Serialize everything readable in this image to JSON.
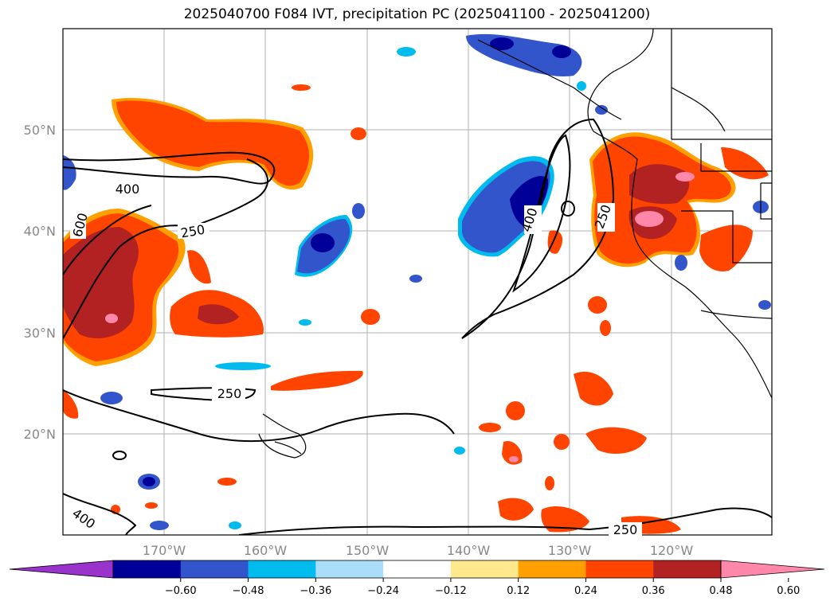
{
  "title": "2025040700 F084 IVT, precipitation PC (2025041100 - 2025041200)",
  "map": {
    "lat_labels": [
      "50°N",
      "40°N",
      "30°N",
      "20°N"
    ],
    "lon_labels": [
      "170°W",
      "160°W",
      "150°W",
      "140°W",
      "130°W",
      "120°W"
    ],
    "ivt_contour_labels": [
      "400",
      "600",
      "250",
      "250",
      "400",
      "250",
      "250",
      "400"
    ]
  },
  "colorbar": {
    "ticks": [
      "−0.60",
      "−0.48",
      "−0.36",
      "−0.24",
      "−0.12",
      "0.12",
      "0.24",
      "0.36",
      "0.48",
      "0.60"
    ],
    "colors": [
      "#9933cc",
      "#000099",
      "#3355cc",
      "#00bbee",
      "#aaddf7",
      "#ffffff",
      "#ffe98c",
      "#ffa000",
      "#ff4400",
      "#b22222",
      "#ff88aa"
    ]
  }
}
